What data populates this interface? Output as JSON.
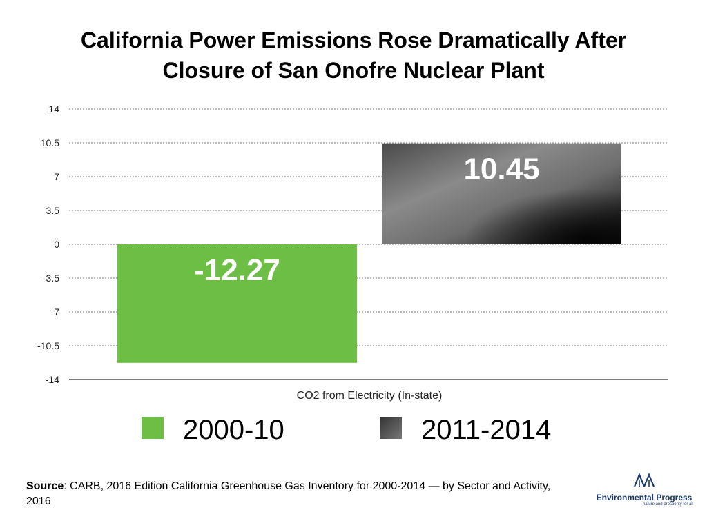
{
  "chart_data": {
    "type": "bar",
    "title_lines": [
      "California Power Emissions Rose Dramatically After",
      "Closure of San Onofre Nuclear Plant"
    ],
    "xlabel": "CO2 from Electricity (In-state)",
    "categories": [
      "CO2 from Electricity (In-state)"
    ],
    "series": [
      {
        "name": "2000-10",
        "values": [
          -12.27
        ],
        "label": "-12.27",
        "color": "#6dbe45"
      },
      {
        "name": "2011-2014",
        "values": [
          10.45
        ],
        "label": "10.45",
        "color": "#555555"
      }
    ],
    "ylim": [
      -14,
      14
    ],
    "yticks": [
      14,
      10.5,
      7,
      3.5,
      0,
      -3.5,
      -7,
      -10.5,
      -14
    ],
    "ytick_labels": [
      "14",
      "10.5",
      "7",
      "3.5",
      "0",
      "-3.5",
      "-7",
      "-10.5",
      "-14"
    ],
    "grid": true,
    "legend_position": "bottom"
  },
  "source": {
    "label": "Source",
    "text": ": CARB, 2016 Edition California Greenhouse Gas Inventory for 2000-2014 — by Sector and Activity, 2016"
  },
  "logo": {
    "name": "Environmental Progress",
    "tagline": "nature and prosperity for all",
    "icon": "trees-icon"
  }
}
